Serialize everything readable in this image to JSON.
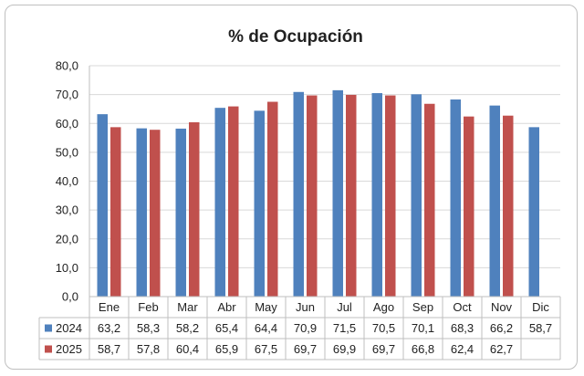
{
  "chart_data": {
    "type": "bar",
    "title": "% de Ocupación",
    "categories": [
      "Ene",
      "Feb",
      "Mar",
      "Abr",
      "May",
      "Jun",
      "Jul",
      "Ago",
      "Sep",
      "Oct",
      "Nov",
      "Dic"
    ],
    "series": [
      {
        "name": "2024",
        "color": "#4f81bd",
        "values": [
          63.2,
          58.3,
          58.2,
          65.4,
          64.4,
          70.9,
          71.5,
          70.5,
          70.1,
          68.3,
          66.2,
          58.7
        ],
        "labels": [
          "63,2",
          "58,3",
          "58,2",
          "65,4",
          "64,4",
          "70,9",
          "71,5",
          "70,5",
          "70,1",
          "68,3",
          "66,2",
          "58,7"
        ]
      },
      {
        "name": "2025",
        "color": "#c0504d",
        "values": [
          58.7,
          57.8,
          60.4,
          65.9,
          67.5,
          69.7,
          69.9,
          69.7,
          66.8,
          62.4,
          62.7,
          null
        ],
        "labels": [
          "58,7",
          "57,8",
          "60,4",
          "65,9",
          "67,5",
          "69,7",
          "69,9",
          "69,7",
          "66,8",
          "62,4",
          "62,7",
          ""
        ]
      }
    ],
    "ylim": [
      0,
      80
    ],
    "yticks": [
      "0,0",
      "10,0",
      "20,0",
      "30,0",
      "40,0",
      "50,0",
      "60,0",
      "70,0",
      "80,0"
    ],
    "grid": true,
    "legend": "data-table"
  }
}
